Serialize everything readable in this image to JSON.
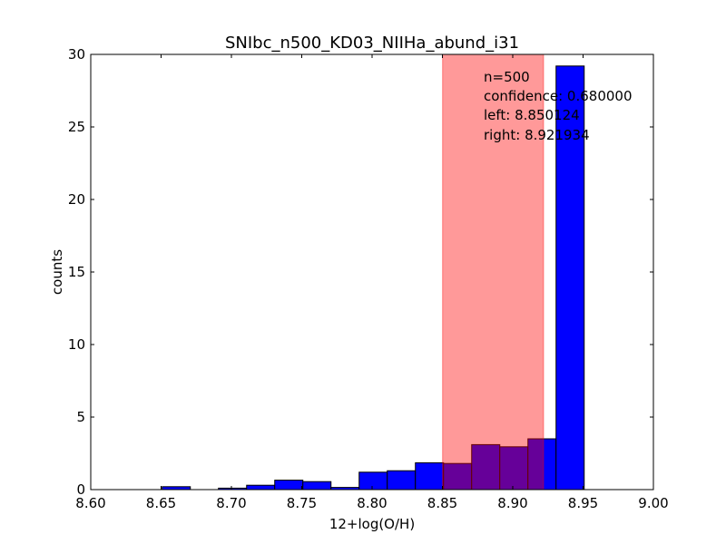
{
  "chart_data": {
    "type": "bar",
    "title": "SNIbc_n500_KD03_NIIHa_abund_i31",
    "xlabel": "12+log(O/H)",
    "ylabel": "counts",
    "xlim": [
      8.6,
      9.0
    ],
    "ylim": [
      0,
      30
    ],
    "x_ticks": [
      "8.60",
      "8.65",
      "8.70",
      "8.75",
      "8.80",
      "8.85",
      "8.90",
      "8.95",
      "9.00"
    ],
    "y_ticks": [
      "0",
      "5",
      "10",
      "15",
      "20",
      "25",
      "30"
    ],
    "bins": [
      {
        "left": 8.6508,
        "right": 8.6708,
        "value": 0.2
      },
      {
        "left": 8.6708,
        "right": 8.6908,
        "value": 0.0
      },
      {
        "left": 8.6908,
        "right": 8.7108,
        "value": 0.1
      },
      {
        "left": 8.7108,
        "right": 8.7308,
        "value": 0.3
      },
      {
        "left": 8.7308,
        "right": 8.7508,
        "value": 0.65
      },
      {
        "left": 8.7508,
        "right": 8.7708,
        "value": 0.55
      },
      {
        "left": 8.7708,
        "right": 8.7908,
        "value": 0.15
      },
      {
        "left": 8.7908,
        "right": 8.8108,
        "value": 1.2
      },
      {
        "left": 8.8108,
        "right": 8.8308,
        "value": 1.3
      },
      {
        "left": 8.8308,
        "right": 8.8508,
        "value": 1.85
      },
      {
        "left": 8.8508,
        "right": 8.8708,
        "value": 1.8
      },
      {
        "left": 8.8708,
        "right": 8.8908,
        "value": 3.1
      },
      {
        "left": 8.8908,
        "right": 8.9108,
        "value": 2.95
      },
      {
        "left": 8.9108,
        "right": 8.9308,
        "value": 3.5
      },
      {
        "left": 8.9308,
        "right": 8.9508,
        "value": 29.2
      }
    ],
    "confidence_band": {
      "left": 8.850124,
      "right": 8.921934
    },
    "annotation": {
      "n": "n=500",
      "confidence": "confidence: 0.680000",
      "left": "left: 8.850124",
      "right": "right: 8.921934"
    },
    "colors": {
      "bar": "#0000ff",
      "bar_edge": "#000000",
      "band": "#ff0000",
      "band_opacity": 0.4
    }
  }
}
